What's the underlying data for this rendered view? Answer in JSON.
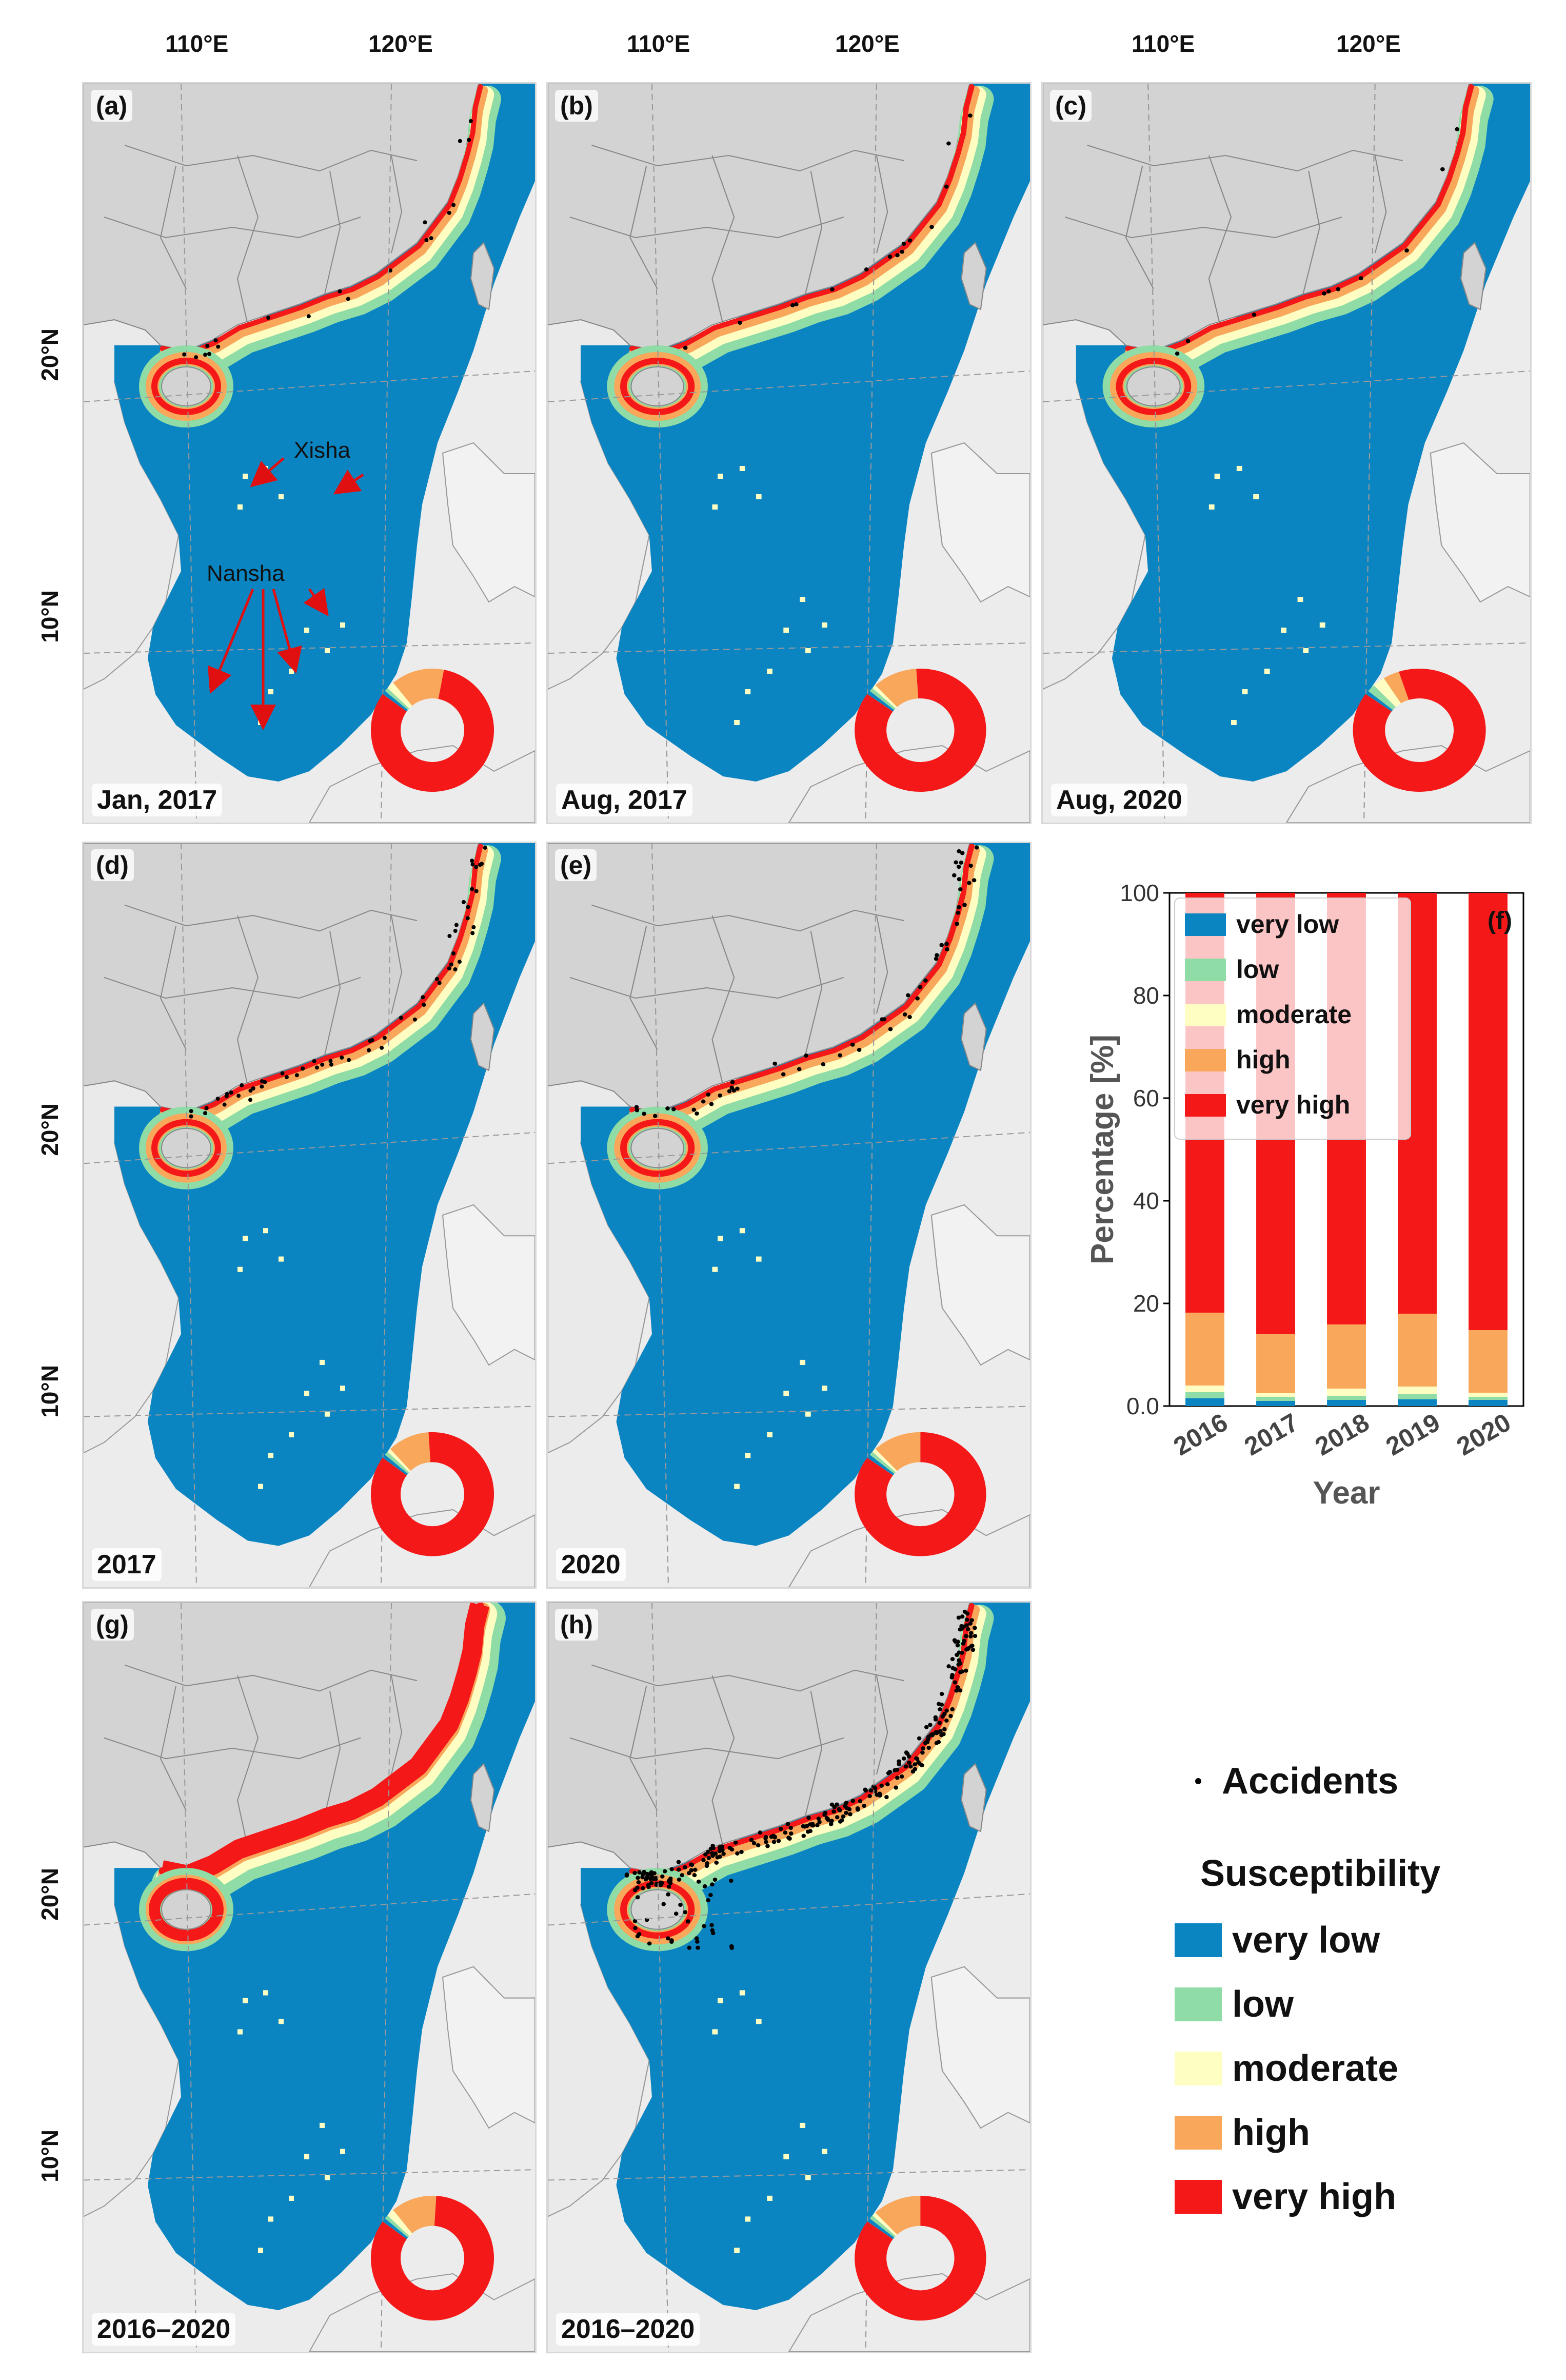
{
  "axes": {
    "lon_labels": [
      "110°E",
      "120°E"
    ],
    "lat_labels": [
      "20°N",
      "10°N"
    ]
  },
  "colors": {
    "very_low": "#0a85c2",
    "low": "#8fdca6",
    "moderate": "#fefec2",
    "high": "#f9a75a",
    "very_high": "#f41818",
    "land": "#d3d3d3",
    "sea_bg": "#ececec",
    "accident": "#000000"
  },
  "panels": [
    {
      "id": "a",
      "label": "(a)",
      "time": "Jan, 2017",
      "donut": {
        "very_low": 0.01,
        "low": 0.01,
        "moderate": 0.02,
        "high": 0.14,
        "very_high": 0.82
      }
    },
    {
      "id": "b",
      "label": "(b)",
      "time": "Aug, 2017",
      "donut": {
        "very_low": 0.01,
        "low": 0.01,
        "moderate": 0.01,
        "high": 0.11,
        "very_high": 0.86
      }
    },
    {
      "id": "c",
      "label": "(c)",
      "time": "Aug, 2020",
      "donut": {
        "very_low": 0.01,
        "low": 0.02,
        "moderate": 0.03,
        "high": 0.04,
        "very_high": 0.9
      }
    },
    {
      "id": "d",
      "label": "(d)",
      "time": "2017",
      "donut": {
        "very_low": 0.01,
        "low": 0.01,
        "moderate": 0.01,
        "high": 0.11,
        "very_high": 0.86
      }
    },
    {
      "id": "e",
      "label": "(e)",
      "time": "2020",
      "donut": {
        "very_low": 0.01,
        "low": 0.01,
        "moderate": 0.01,
        "high": 0.12,
        "very_high": 0.85
      }
    },
    {
      "id": "g",
      "label": "(g)",
      "time": "2016–2020",
      "donut": {
        "very_low": 0.01,
        "low": 0.01,
        "moderate": 0.02,
        "high": 0.12,
        "very_high": 0.84
      }
    },
    {
      "id": "h",
      "label": "(h)",
      "time": "2016–2020",
      "donut": {
        "very_low": 0.01,
        "low": 0.01,
        "moderate": 0.01,
        "high": 0.12,
        "very_high": 0.85
      }
    }
  ],
  "annotations": {
    "xisha": "Xisha",
    "nansha": "Nansha"
  },
  "chart_data": {
    "type": "bar",
    "stacked": true,
    "panel_label": "(f)",
    "categories": [
      "2016",
      "2017",
      "2018",
      "2019",
      "2020"
    ],
    "series": [
      {
        "name": "very low",
        "values": [
          1.5,
          1.0,
          1.2,
          1.3,
          1.2
        ]
      },
      {
        "name": "low",
        "values": [
          1.2,
          0.8,
          0.8,
          1.0,
          0.6
        ]
      },
      {
        "name": "moderate",
        "values": [
          1.3,
          0.7,
          1.4,
          1.5,
          0.8
        ]
      },
      {
        "name": "high",
        "values": [
          14.2,
          11.5,
          12.5,
          14.2,
          12.2
        ]
      },
      {
        "name": "very high",
        "values": [
          81.8,
          86.0,
          84.1,
          82.0,
          85.2
        ]
      }
    ],
    "xlabel": "Year",
    "ylabel": "Percentage [%]",
    "ylim": [
      0,
      100
    ],
    "yticks": [
      "0.0",
      "20",
      "40",
      "60",
      "80",
      "100"
    ],
    "legend_position": "top-left"
  },
  "legend": {
    "accidents_label": "Accidents",
    "title": "Susceptibility",
    "items": [
      "very low",
      "low",
      "moderate",
      "high",
      "very high"
    ]
  }
}
